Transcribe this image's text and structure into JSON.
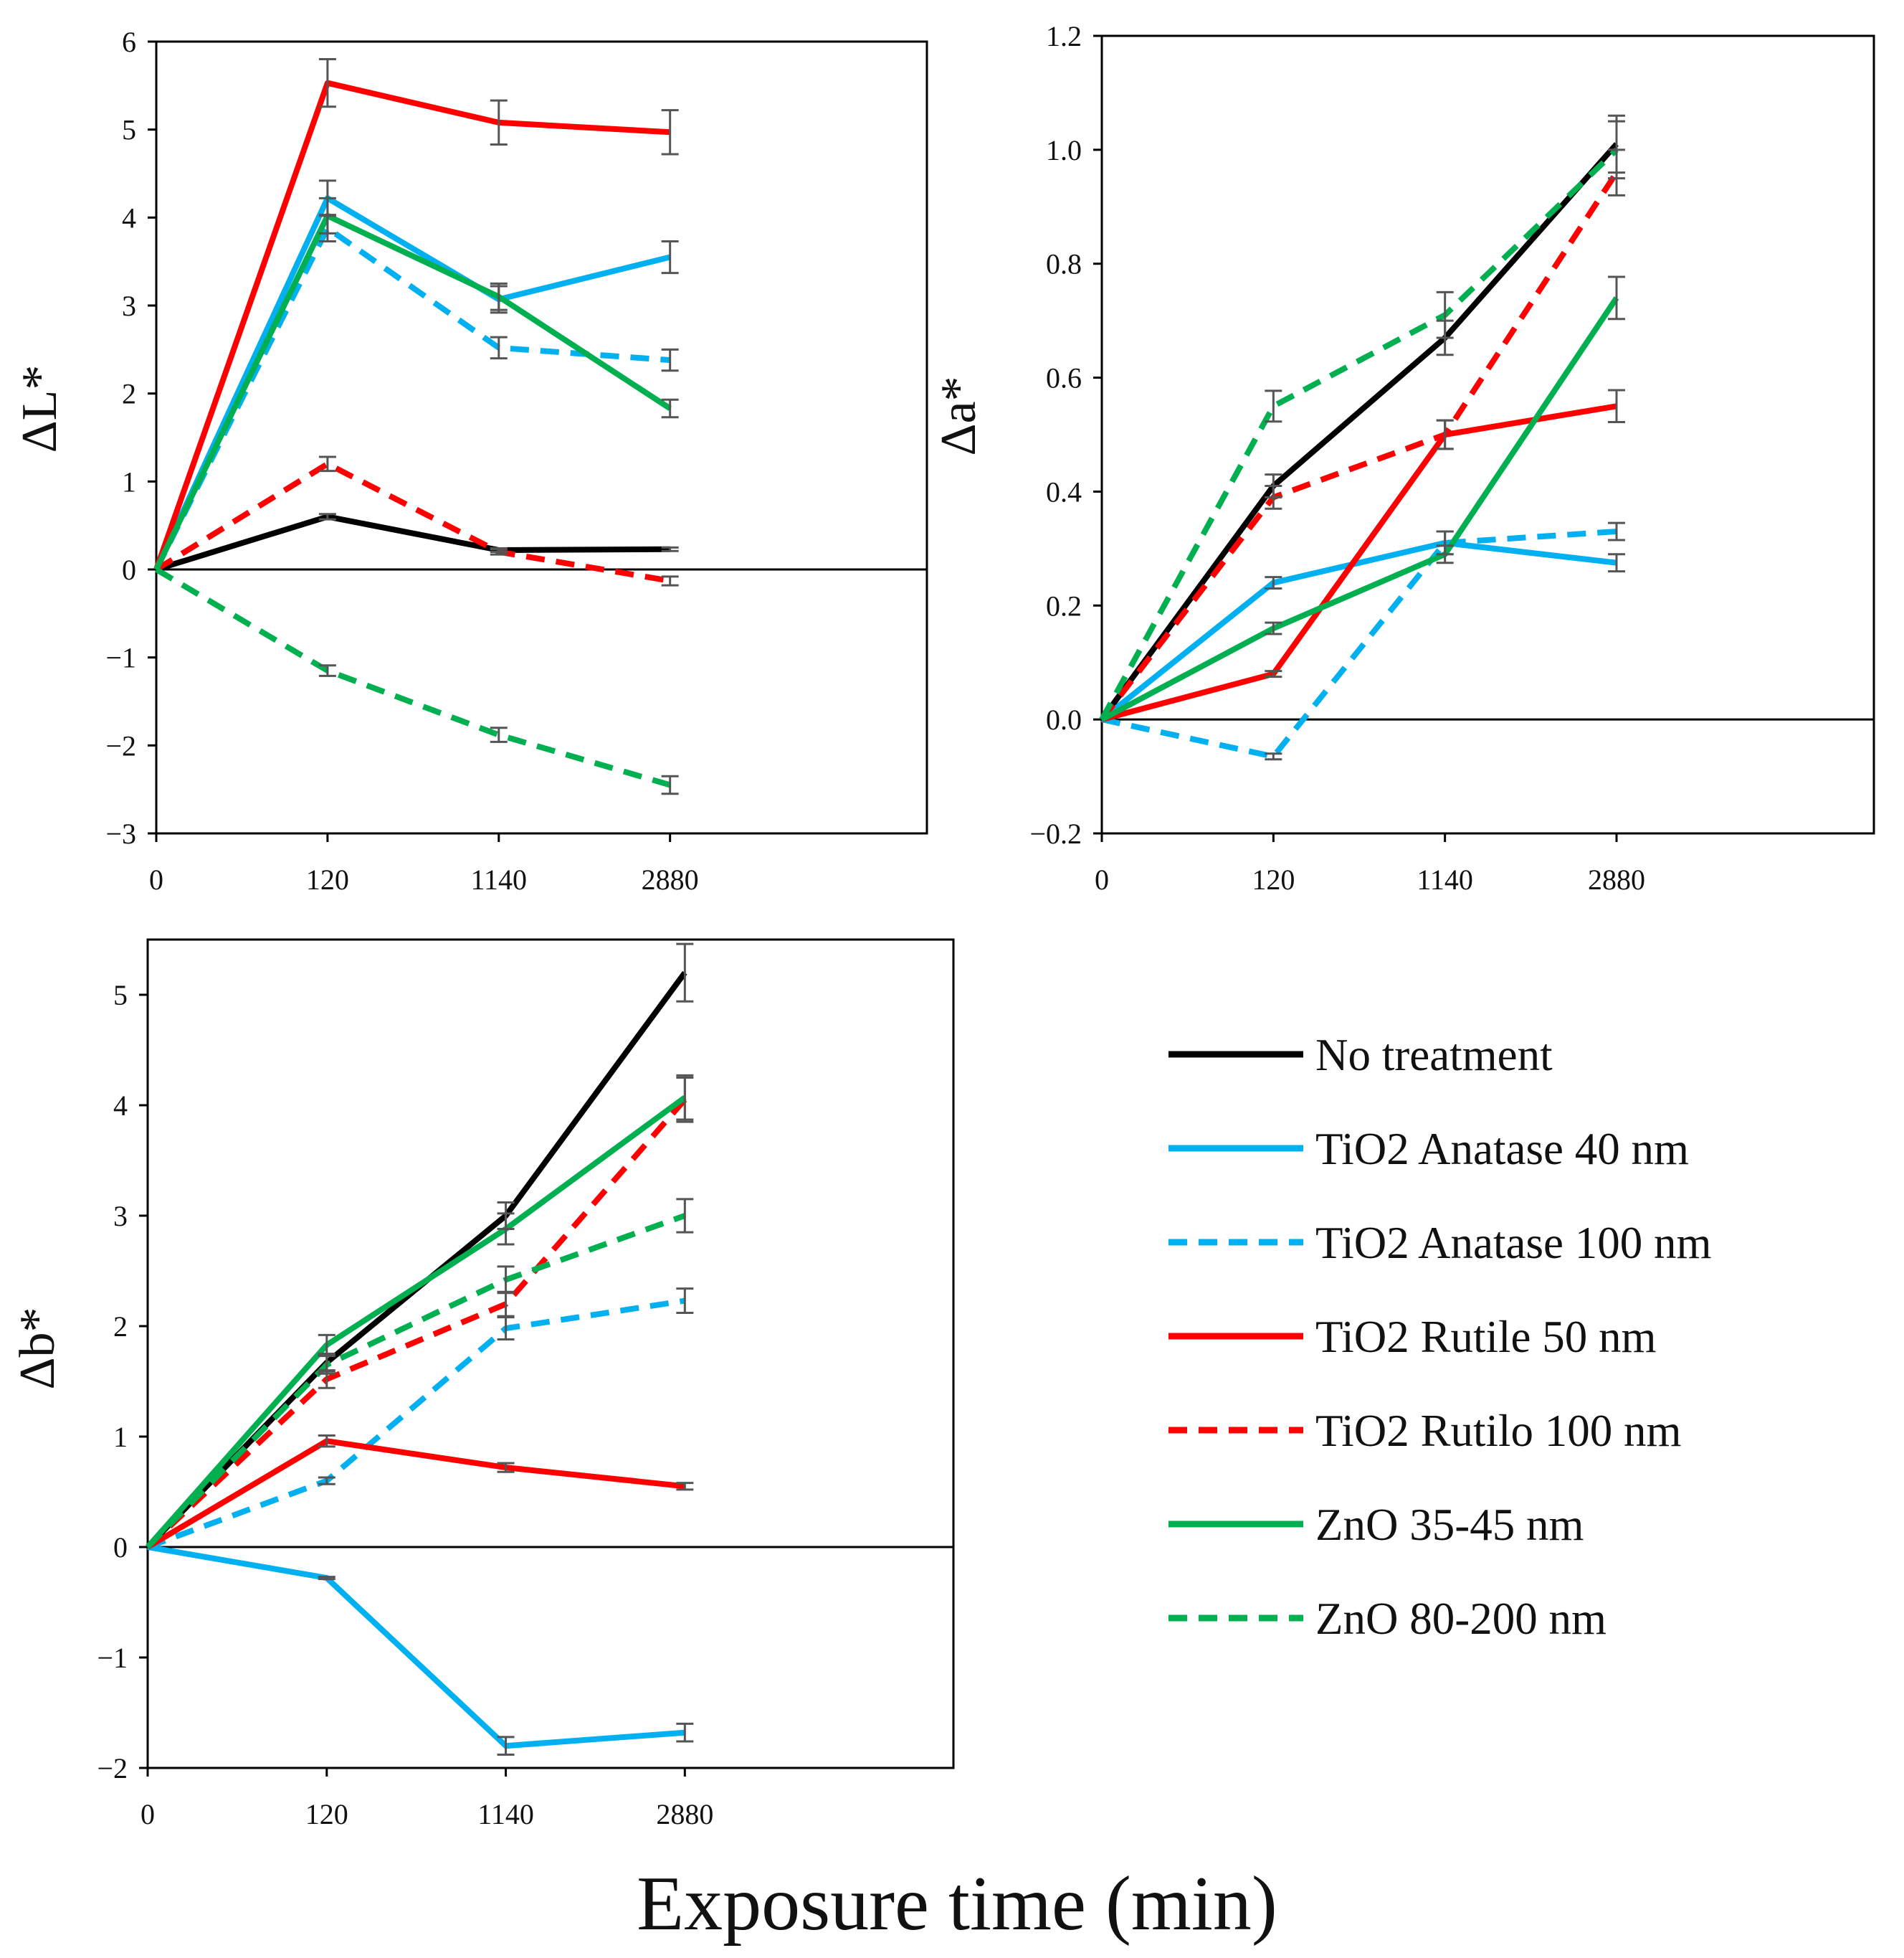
{
  "figure": {
    "xlabel": "Exposure time (min)",
    "legend": {
      "placement": "bottom-right",
      "entries": [
        {
          "label": "No treatment",
          "color": "#000000",
          "dash": "solid"
        },
        {
          "label": "TiO2 Anatase 40 nm",
          "color": "#00B0F0",
          "dash": "solid"
        },
        {
          "label": "TiO2 Anatase 100 nm",
          "color": "#00B0F0",
          "dash": "dashed"
        },
        {
          "label": "TiO2 Rutile 50 nm",
          "color": "#FF0000",
          "dash": "solid"
        },
        {
          "label": "TiO2 Rutilo 100 nm",
          "color": "#FF0000",
          "dash": "dashed"
        },
        {
          "label": "ZnO 35-45 nm",
          "color": "#00B050",
          "dash": "solid"
        },
        {
          "label": "ZnO 80-200 nm",
          "color": "#00B050",
          "dash": "dashed"
        }
      ]
    }
  },
  "chart_data": [
    {
      "id": "dL",
      "type": "line",
      "ylabel": "ΔL*",
      "categories": [
        "0",
        "120",
        "1140",
        "2880"
      ],
      "ylim": [
        -3,
        6
      ],
      "yticks": [
        -3,
        -2,
        -1,
        0,
        1,
        2,
        3,
        4,
        5,
        6
      ],
      "ytick_labels": [
        "−3",
        "−2",
        "−1",
        "0",
        "1",
        "2",
        "3",
        "4",
        "5",
        "6"
      ],
      "grid": false,
      "series": [
        {
          "name": "No treatment",
          "color": "#000000",
          "dash": "solid",
          "values": [
            0,
            0.6,
            0.22,
            0.23
          ],
          "errors": [
            0,
            0.03,
            0.02,
            0.02
          ]
        },
        {
          "name": "TiO2 Anatase 40 nm",
          "color": "#00B0F0",
          "dash": "solid",
          "values": [
            0,
            4.22,
            3.07,
            3.55
          ],
          "errors": [
            0,
            0.2,
            0.15,
            0.18
          ]
        },
        {
          "name": "TiO2 Anatase 100 nm",
          "color": "#00B0F0",
          "dash": "dashed",
          "values": [
            0,
            3.88,
            2.52,
            2.38
          ],
          "errors": [
            0,
            0.15,
            0.12,
            0.12
          ]
        },
        {
          "name": "TiO2 Rutile 50 nm",
          "color": "#FF0000",
          "dash": "solid",
          "values": [
            0,
            5.53,
            5.08,
            4.97
          ],
          "errors": [
            0,
            0.27,
            0.25,
            0.25
          ]
        },
        {
          "name": "TiO2 Rutilo 100 nm",
          "color": "#FF0000",
          "dash": "dashed",
          "values": [
            0,
            1.2,
            0.2,
            -0.13
          ],
          "errors": [
            0,
            0.08,
            0.03,
            0.05
          ]
        },
        {
          "name": "ZnO 35-45 nm",
          "color": "#00B050",
          "dash": "solid",
          "values": [
            0,
            4.02,
            3.1,
            1.83
          ],
          "errors": [
            0,
            0.2,
            0.15,
            0.1
          ]
        },
        {
          "name": "ZnO 80-200 nm",
          "color": "#00B050",
          "dash": "dashed",
          "values": [
            0,
            -1.15,
            -1.88,
            -2.45
          ],
          "errors": [
            0,
            0.06,
            0.08,
            0.1
          ]
        }
      ]
    },
    {
      "id": "da",
      "type": "line",
      "ylabel": "Δa*",
      "categories": [
        "0",
        "120",
        "1140",
        "2880"
      ],
      "ylim": [
        -0.2,
        1.2
      ],
      "yticks": [
        -0.2,
        0,
        0.2,
        0.4,
        0.6,
        0.8,
        1.0,
        1.2
      ],
      "ytick_labels": [
        "−0.2",
        "0.0",
        "0.2",
        "0.4",
        "0.6",
        "0.8",
        "1.0",
        "1.2"
      ],
      "grid": false,
      "series": [
        {
          "name": "No treatment",
          "color": "#000000",
          "dash": "solid",
          "values": [
            0,
            0.41,
            0.67,
            1.01
          ],
          "errors": [
            0,
            0.02,
            0.03,
            0.05
          ]
        },
        {
          "name": "TiO2 Anatase 40 nm",
          "color": "#00B0F0",
          "dash": "solid",
          "values": [
            0,
            0.24,
            0.31,
            0.275
          ],
          "errors": [
            0,
            0.01,
            0.02,
            0.015
          ]
        },
        {
          "name": "TiO2 Anatase 100 nm",
          "color": "#00B0F0",
          "dash": "dashed",
          "values": [
            0,
            -0.065,
            0.31,
            0.33
          ],
          "errors": [
            0,
            0.005,
            0.02,
            0.015
          ]
        },
        {
          "name": "TiO2 Rutile 50 nm",
          "color": "#FF0000",
          "dash": "solid",
          "values": [
            0,
            0.08,
            0.5,
            0.55
          ],
          "errors": [
            0,
            0.005,
            0.025,
            0.028
          ]
        },
        {
          "name": "TiO2 Rutilo 100 nm",
          "color": "#FF0000",
          "dash": "dashed",
          "values": [
            0,
            0.39,
            0.5,
            0.96
          ],
          "errors": [
            0,
            0.02,
            0.025,
            0.04
          ]
        },
        {
          "name": "ZnO 35-45 nm",
          "color": "#00B050",
          "dash": "solid",
          "values": [
            0,
            0.16,
            0.29,
            0.74
          ],
          "errors": [
            0,
            0.01,
            0.015,
            0.037
          ]
        },
        {
          "name": "ZnO 80-200 nm",
          "color": "#00B050",
          "dash": "dashed",
          "values": [
            0,
            0.55,
            0.71,
            1.0
          ],
          "errors": [
            0,
            0.027,
            0.04,
            0.05
          ]
        }
      ]
    },
    {
      "id": "db",
      "type": "line",
      "ylabel": "Δb*",
      "categories": [
        "0",
        "120",
        "1140",
        "2880"
      ],
      "ylim": [
        -2,
        5.5
      ],
      "yticks": [
        -2,
        -1,
        0,
        1,
        2,
        3,
        4,
        5
      ],
      "ytick_labels": [
        "−2",
        "−1",
        "0",
        "1",
        "2",
        "3",
        "4",
        "5"
      ],
      "grid": false,
      "series": [
        {
          "name": "No treatment",
          "color": "#000000",
          "dash": "solid",
          "values": [
            0,
            1.67,
            3.0,
            5.2
          ],
          "errors": [
            0,
            0.08,
            0.12,
            0.26
          ]
        },
        {
          "name": "TiO2 Anatase 40 nm",
          "color": "#00B0F0",
          "dash": "solid",
          "values": [
            0,
            -0.28,
            -1.8,
            -1.68
          ],
          "errors": [
            0,
            0.01,
            0.08,
            0.08
          ]
        },
        {
          "name": "TiO2 Anatase 100 nm",
          "color": "#00B0F0",
          "dash": "dashed",
          "values": [
            0,
            0.6,
            1.98,
            2.23
          ],
          "errors": [
            0,
            0.03,
            0.1,
            0.11
          ]
        },
        {
          "name": "TiO2 Rutile 50 nm",
          "color": "#FF0000",
          "dash": "solid",
          "values": [
            0,
            0.96,
            0.72,
            0.55
          ],
          "errors": [
            0,
            0.05,
            0.04,
            0.03
          ]
        },
        {
          "name": "TiO2 Rutilo 100 nm",
          "color": "#FF0000",
          "dash": "dashed",
          "values": [
            0,
            1.52,
            2.2,
            4.05
          ],
          "errors": [
            0,
            0.08,
            0.11,
            0.2
          ]
        },
        {
          "name": "ZnO 35-45 nm",
          "color": "#00B050",
          "dash": "solid",
          "values": [
            0,
            1.83,
            2.88,
            4.07
          ],
          "errors": [
            0,
            0.09,
            0.14,
            0.2
          ]
        },
        {
          "name": "ZnO 80-200 nm",
          "color": "#00B050",
          "dash": "dashed",
          "values": [
            0,
            1.65,
            2.42,
            3.0
          ],
          "errors": [
            0,
            0.08,
            0.12,
            0.15
          ]
        }
      ]
    }
  ]
}
